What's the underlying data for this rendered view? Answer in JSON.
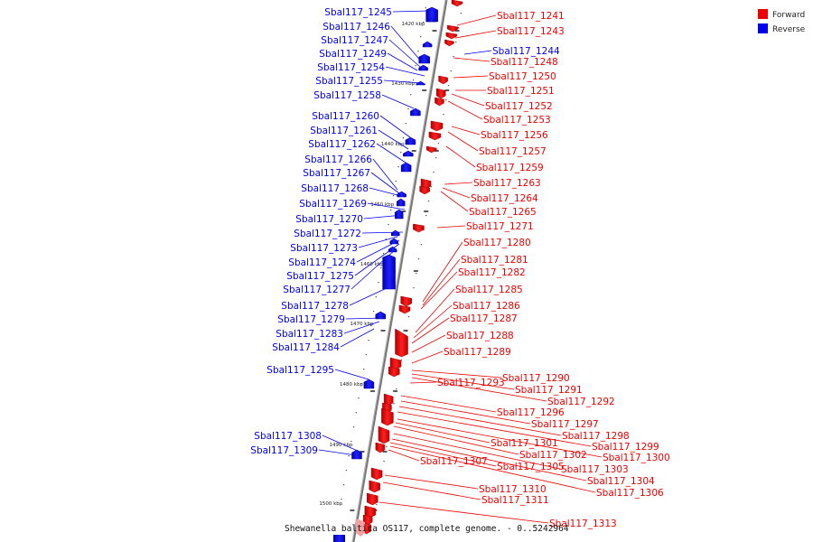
{
  "colors": {
    "forward": "#ee0000",
    "reverse": "#0000ee",
    "backbone": "#777777"
  },
  "legend": [
    {
      "label": "Forward",
      "color": "#ee0000"
    },
    {
      "label": "Reverse",
      "color": "#0000ee"
    }
  ],
  "caption": "Shewanella baltica OS117, complete genome. - 0..5242964",
  "ticks": [
    "1420 kbp",
    "1430 kbp",
    "1440 kbp",
    "1450 kbp",
    "1460 kbp",
    "1470 kbp",
    "1480 kbp",
    "1490 kbp",
    "1500 kbp"
  ],
  "reverse_genes": [
    "Sbal117_1245",
    "Sbal117_1246",
    "Sbal117_1247",
    "Sbal117_1249",
    "Sbal117_1254",
    "Sbal117_1255",
    "Sbal117_1258",
    "Sbal117_1260",
    "Sbal117_1261",
    "Sbal117_1262",
    "Sbal117_1266",
    "Sbal117_1267",
    "Sbal117_1268",
    "Sbal117_1269",
    "Sbal117_1270",
    "Sbal117_1272",
    "Sbal117_1273",
    "Sbal117_1274",
    "Sbal117_1275",
    "Sbal117_1277",
    "Sbal117_1278",
    "Sbal117_1279",
    "Sbal117_1283",
    "Sbal117_1284",
    "Sbal117_1295",
    "Sbal117_1308",
    "Sbal117_1309"
  ],
  "forward_genes": [
    "Sbal117_1241",
    "Sbal117_1243",
    "Sbal117_1248",
    "Sbal117_1250",
    "Sbal117_1251",
    "Sbal117_1252",
    "Sbal117_1253",
    "Sbal117_1256",
    "Sbal117_1257",
    "Sbal117_1259",
    "Sbal117_1263",
    "Sbal117_1264",
    "Sbal117_1265",
    "Sbal117_1271",
    "Sbal117_1280",
    "Sbal117_1281",
    "Sbal117_1282",
    "Sbal117_1285",
    "Sbal117_1286",
    "Sbal117_1287",
    "Sbal117_1288",
    "Sbal117_1289",
    "Sbal117_1290",
    "Sbal117_1291",
    "Sbal117_1292",
    "Sbal117_1293",
    "Sbal117_1296",
    "Sbal117_1297",
    "Sbal117_1298",
    "Sbal117_1299",
    "Sbal117_1300",
    "Sbal117_1301",
    "Sbal117_1302",
    "Sbal117_1303",
    "Sbal117_1304",
    "Sbal117_1305",
    "Sbal117_1306",
    "Sbal117_1307",
    "Sbal117_1310",
    "Sbal117_1311",
    "Sbal117_1313"
  ],
  "reverse_gene_1244": "Sbal117_1244"
}
